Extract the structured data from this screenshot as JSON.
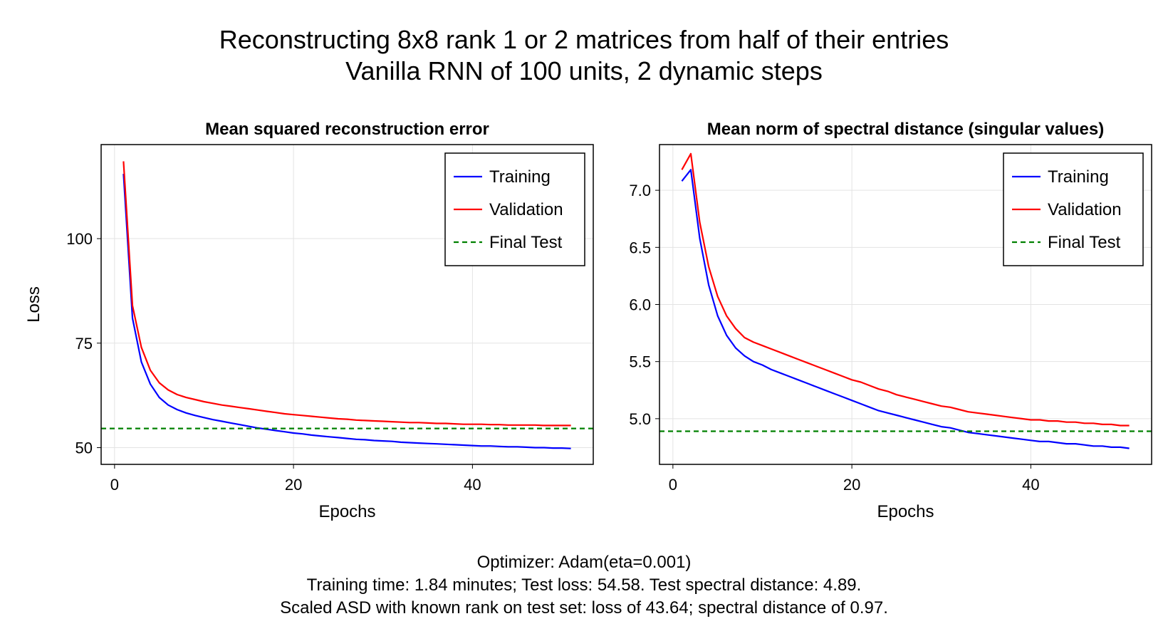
{
  "figure": {
    "title_line1": "Reconstructing 8x8 rank 1 or 2 matrices from half of their entries",
    "title_line2": "Vanilla RNN of 100 units, 2 dynamic steps",
    "footer_line1": "Optimizer: Adam(eta=0.001)",
    "footer_line2": "Training time: 1.84 minutes; Test loss: 54.58. Test spectral distance: 4.89.",
    "footer_line3": "Scaled ASD with known rank on test set: loss of 43.64; spectral distance of 0.97."
  },
  "chart_data": [
    {
      "type": "line",
      "title": "Mean squared reconstruction error",
      "xlabel": "Epochs",
      "ylabel": "Loss",
      "xlim": [
        -1.5,
        53.5
      ],
      "ylim": [
        46,
        122.5
      ],
      "xticks": [
        0,
        20,
        40
      ],
      "yticks": [
        50,
        75,
        100
      ],
      "grid": true,
      "legend_position": "top-right",
      "x": [
        1,
        2,
        3,
        4,
        5,
        6,
        7,
        8,
        9,
        10,
        11,
        12,
        13,
        14,
        15,
        16,
        17,
        18,
        19,
        20,
        21,
        22,
        23,
        24,
        25,
        26,
        27,
        28,
        29,
        30,
        31,
        32,
        33,
        34,
        35,
        36,
        37,
        38,
        39,
        40,
        41,
        42,
        43,
        44,
        45,
        46,
        47,
        48,
        49,
        50,
        51
      ],
      "series": [
        {
          "name": "Training",
          "color": "#0000ff",
          "style": "solid",
          "values": [
            115.5,
            81.0,
            70.5,
            65.2,
            62.0,
            60.2,
            59.1,
            58.3,
            57.7,
            57.2,
            56.7,
            56.3,
            55.9,
            55.5,
            55.1,
            54.7,
            54.4,
            54.1,
            53.8,
            53.5,
            53.3,
            53.0,
            52.8,
            52.6,
            52.4,
            52.2,
            52.0,
            51.9,
            51.7,
            51.6,
            51.5,
            51.3,
            51.2,
            51.1,
            51.0,
            50.9,
            50.8,
            50.7,
            50.6,
            50.5,
            50.4,
            50.4,
            50.3,
            50.2,
            50.2,
            50.1,
            50.0,
            50.0,
            49.9,
            49.9,
            49.8
          ]
        },
        {
          "name": "Validation",
          "color": "#ff0000",
          "style": "solid",
          "values": [
            118.5,
            84.0,
            74.0,
            68.5,
            65.5,
            63.8,
            62.7,
            62.0,
            61.5,
            61.0,
            60.6,
            60.2,
            59.9,
            59.6,
            59.3,
            59.0,
            58.7,
            58.4,
            58.1,
            57.9,
            57.7,
            57.5,
            57.3,
            57.1,
            56.9,
            56.8,
            56.6,
            56.5,
            56.4,
            56.3,
            56.2,
            56.1,
            56.0,
            56.0,
            55.9,
            55.8,
            55.8,
            55.7,
            55.6,
            55.6,
            55.6,
            55.5,
            55.5,
            55.4,
            55.4,
            55.4,
            55.4,
            55.3,
            55.3,
            55.3,
            55.3
          ]
        },
        {
          "name": "Final Test",
          "color": "#008000",
          "style": "dashed",
          "constant": 54.58
        }
      ]
    },
    {
      "type": "line",
      "title": "Mean norm of spectral distance (singular values)",
      "xlabel": "Epochs",
      "ylabel": "",
      "xlim": [
        -1.5,
        53.5
      ],
      "ylim": [
        4.6,
        7.4
      ],
      "xticks": [
        0,
        20,
        40
      ],
      "yticks": [
        5.0,
        5.5,
        6.0,
        6.5,
        7.0
      ],
      "ytick_labels": [
        "5.0",
        "5.5",
        "6.0",
        "6.5",
        "7.0"
      ],
      "grid": true,
      "legend_position": "top-right",
      "x": [
        1,
        2,
        3,
        4,
        5,
        6,
        7,
        8,
        9,
        10,
        11,
        12,
        13,
        14,
        15,
        16,
        17,
        18,
        19,
        20,
        21,
        22,
        23,
        24,
        25,
        26,
        27,
        28,
        29,
        30,
        31,
        32,
        33,
        34,
        35,
        36,
        37,
        38,
        39,
        40,
        41,
        42,
        43,
        44,
        45,
        46,
        47,
        48,
        49,
        50,
        51
      ],
      "series": [
        {
          "name": "Training",
          "color": "#0000ff",
          "style": "solid",
          "values": [
            7.08,
            7.18,
            6.58,
            6.17,
            5.9,
            5.73,
            5.62,
            5.55,
            5.5,
            5.47,
            5.43,
            5.4,
            5.37,
            5.34,
            5.31,
            5.28,
            5.25,
            5.22,
            5.19,
            5.16,
            5.13,
            5.1,
            5.07,
            5.05,
            5.03,
            5.01,
            4.99,
            4.97,
            4.95,
            4.93,
            4.92,
            4.9,
            4.88,
            4.87,
            4.86,
            4.85,
            4.84,
            4.83,
            4.82,
            4.81,
            4.8,
            4.8,
            4.79,
            4.78,
            4.78,
            4.77,
            4.76,
            4.76,
            4.75,
            4.75,
            4.74
          ]
        },
        {
          "name": "Validation",
          "color": "#ff0000",
          "style": "solid",
          "values": [
            7.18,
            7.32,
            6.72,
            6.33,
            6.07,
            5.9,
            5.79,
            5.71,
            5.67,
            5.64,
            5.61,
            5.58,
            5.55,
            5.52,
            5.49,
            5.46,
            5.43,
            5.4,
            5.37,
            5.34,
            5.32,
            5.29,
            5.26,
            5.24,
            5.21,
            5.19,
            5.17,
            5.15,
            5.13,
            5.11,
            5.1,
            5.08,
            5.06,
            5.05,
            5.04,
            5.03,
            5.02,
            5.01,
            5.0,
            4.99,
            4.99,
            4.98,
            4.98,
            4.97,
            4.97,
            4.96,
            4.96,
            4.95,
            4.95,
            4.94,
            4.94
          ]
        },
        {
          "name": "Final Test",
          "color": "#008000",
          "style": "dashed",
          "constant": 4.89
        }
      ]
    }
  ]
}
